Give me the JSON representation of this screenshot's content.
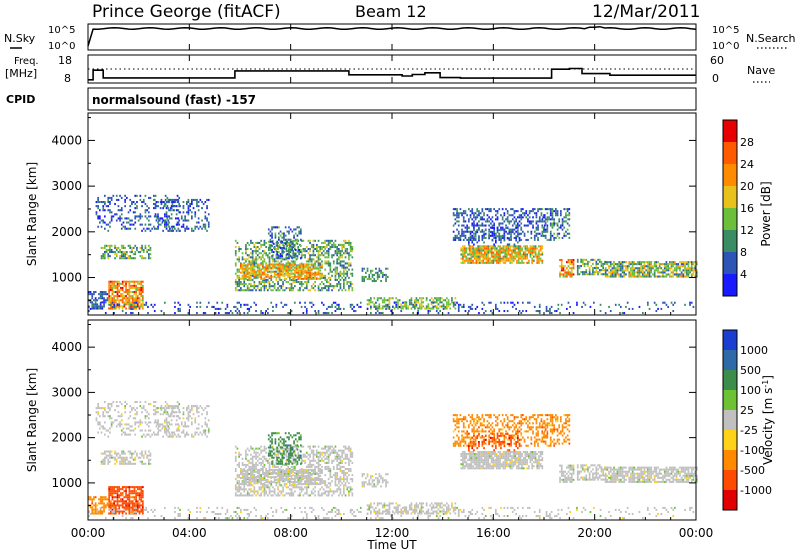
{
  "header": {
    "station": "Prince George (fitACF)",
    "beam": "Beam 12",
    "date": "12/Mar/2011"
  },
  "noise_panel": {
    "left_label": "N.Sky",
    "right_label": "N.Search",
    "left_ticks": [
      "10^5",
      "10^0"
    ],
    "right_ticks": [
      "10^5",
      "10^0"
    ]
  },
  "freq_panel": {
    "left_label_line1": "Freq.",
    "left_label_line2": "[MHz]",
    "right_label": "Nave",
    "left_ticks": [
      "18",
      "8"
    ],
    "right_ticks": [
      "60",
      "0"
    ]
  },
  "cpid_panel": {
    "label": "CPID",
    "mode": "normalsound (fast) -157"
  },
  "chart_data": [
    {
      "type": "heatmap",
      "name": "power",
      "ylabel": "Slant Range [km]",
      "yticks": [
        "1000",
        "2000",
        "3000",
        "4000"
      ],
      "ylim": [
        180,
        4600
      ],
      "colorbar_label": "Power [dB]",
      "colorbar_ticks": [
        "4",
        "8",
        "12",
        "16",
        "20",
        "24",
        "28"
      ],
      "colorbar_colors": [
        "#1a1aff",
        "#2d55b5",
        "#3a8c62",
        "#6cbf3a",
        "#e8c21a",
        "#ff8c00",
        "#ff5a00",
        "#e60000"
      ]
    },
    {
      "type": "heatmap",
      "name": "velocity",
      "ylabel": "Slant Range [km]",
      "yticks": [
        "1000",
        "2000",
        "3000",
        "4000"
      ],
      "ylim": [
        180,
        4600
      ],
      "colorbar_label": "Velocity [m s^-1]",
      "colorbar_ticks": [
        "1000",
        "500",
        "100",
        "25",
        "-25",
        "-100",
        "-500",
        "-1000"
      ],
      "colorbar_colors": [
        "#1a3fd0",
        "#2f6aa8",
        "#3c8c4a",
        "#6cc232",
        "#c0c0c0",
        "#ffd21a",
        "#ff8a00",
        "#ff4b00",
        "#e00000"
      ]
    }
  ],
  "x_axis": {
    "label": "Time UT",
    "ticks": [
      "00:00",
      "04:00",
      "08:00",
      "12:00",
      "16:00",
      "20:00",
      "00:00"
    ]
  }
}
